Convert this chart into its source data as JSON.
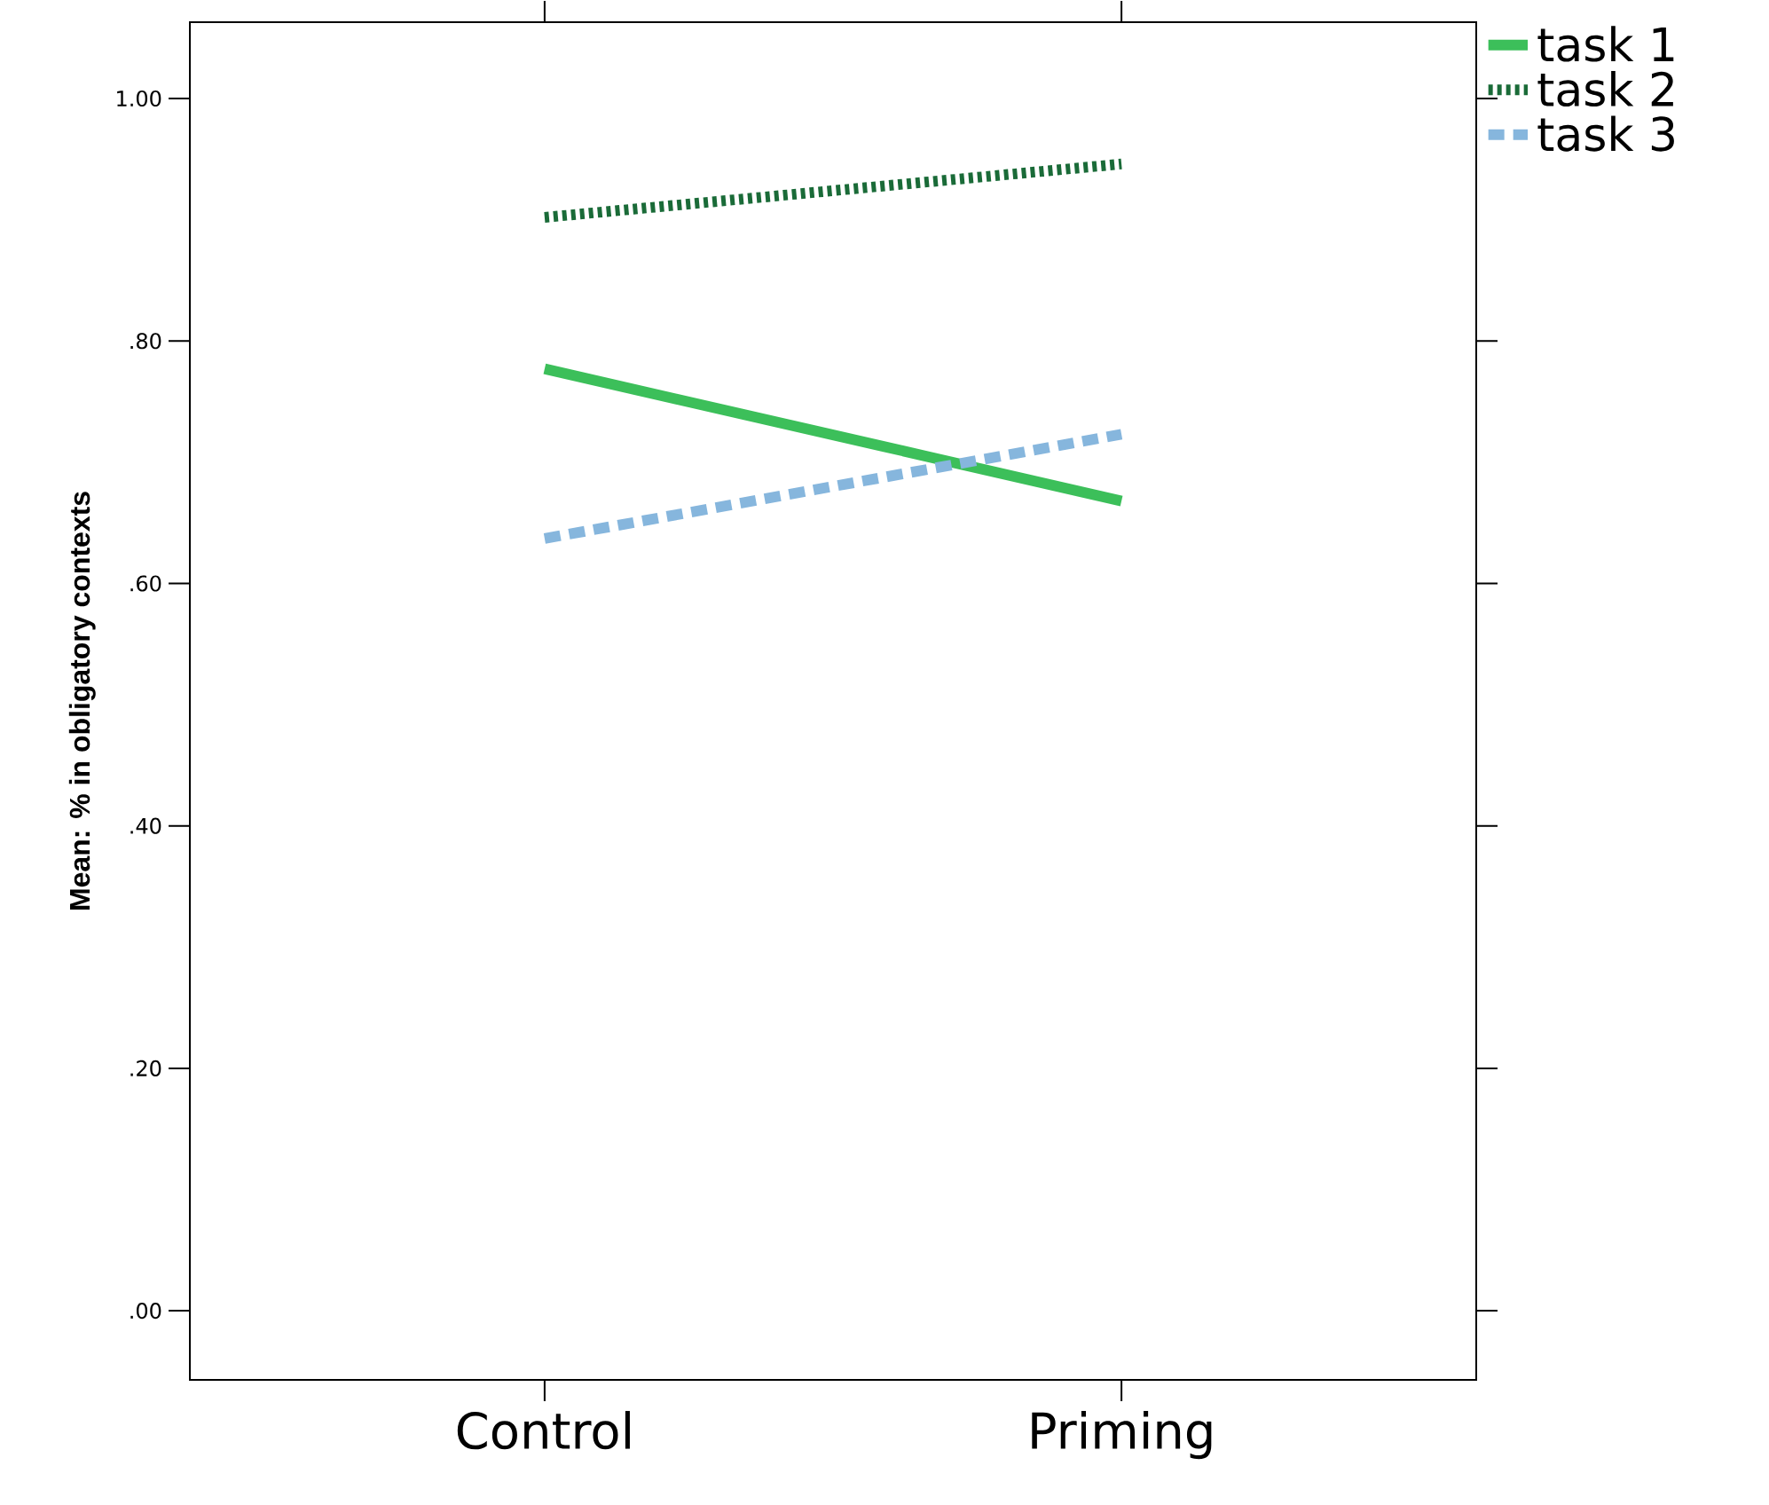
{
  "chart_data": {
    "type": "line",
    "ylabel": "Mean: % in obligatory contexts",
    "categories": [
      "Control",
      "Priming"
    ],
    "series": [
      {
        "name": "task 1",
        "color": "#3cbf5a",
        "line_style": "solid",
        "values": [
          0.777,
          0.668
        ]
      },
      {
        "name": "task 2",
        "color": "#1a6b38",
        "line_style": "dotted",
        "values": [
          0.902,
          0.946
        ]
      },
      {
        "name": "task 3",
        "color": "#86b6dd",
        "line_style": "dashed",
        "values": [
          0.637,
          0.723
        ]
      }
    ],
    "ylim": [
      -0.057,
      1.063
    ],
    "yticks": [
      {
        "value": 0,
        "label": ".00"
      },
      {
        "value": 0.2,
        "label": ".20"
      },
      {
        "value": 0.4,
        "label": ".40"
      },
      {
        "value": 0.6,
        "label": ".60"
      },
      {
        "value": 0.8,
        "label": ".80"
      },
      {
        "value": 1,
        "label": "1.00"
      }
    ],
    "grid": false,
    "legend": "top right",
    "marker": "none"
  }
}
